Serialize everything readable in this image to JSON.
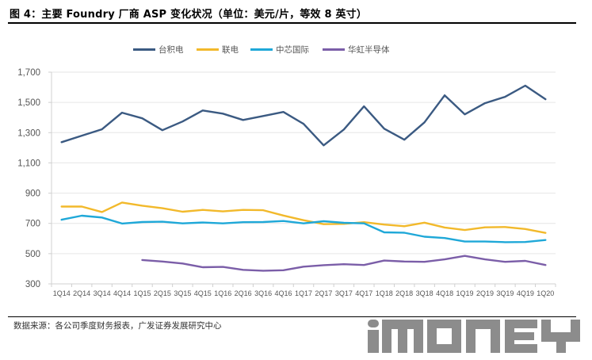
{
  "title": "图 4：主要 Foundry 厂商 ASP 变化状况（单位：美元/片，等效 8 英寸）",
  "source": "数据来源：各公司季度财务报表，广发证券发展研究中心",
  "watermark": "iMONEY",
  "colors": {
    "tsmc": "#3b5a82",
    "umc": "#f2b92b",
    "smic": "#1fa8d8",
    "huahong": "#7b5ea8",
    "grid": "#e6e6e6",
    "axis": "#d0d0d0",
    "watermark": "#8c8c8c"
  },
  "chart_data": {
    "type": "line",
    "title": "主要 Foundry 厂商 ASP 变化状况（单位：美元/片，等效 8 英寸）",
    "xlabel": "",
    "ylabel": "",
    "ylim": [
      300,
      1700
    ],
    "yticks": [
      300,
      500,
      700,
      900,
      1100,
      1300,
      1500,
      1700
    ],
    "ytick_labels": [
      "300",
      "500",
      "700",
      "900",
      "1,100",
      "1,300",
      "1,500",
      "1,700"
    ],
    "grid": true,
    "legend_position": "top-center",
    "categories": [
      "1Q14",
      "2Q14",
      "3Q14",
      "4Q14",
      "1Q15",
      "2Q15",
      "3Q15",
      "4Q15",
      "1Q16",
      "2Q16",
      "3Q16",
      "4Q16",
      "1Q17",
      "2Q17",
      "3Q17",
      "4Q17",
      "1Q18",
      "2Q18",
      "3Q18",
      "4Q18",
      "1Q19",
      "2Q19",
      "3Q19",
      "4Q19",
      "1Q20"
    ],
    "series": [
      {
        "name": "台积电",
        "key": "tsmc",
        "values": [
          1237,
          1280,
          1322,
          1432,
          1395,
          1316,
          1374,
          1447,
          1426,
          1384,
          1410,
          1437,
          1358,
          1216,
          1321,
          1474,
          1326,
          1253,
          1368,
          1547,
          1421,
          1495,
          1537,
          1611,
          1521
        ]
      },
      {
        "name": "联电",
        "key": "umc",
        "values": [
          811,
          811,
          775,
          838,
          817,
          800,
          777,
          789,
          779,
          789,
          787,
          752,
          721,
          695,
          697,
          708,
          692,
          681,
          705,
          673,
          656,
          674,
          676,
          663,
          637
        ]
      },
      {
        "name": "中芯国际",
        "key": "smic",
        "values": [
          724,
          751,
          739,
          699,
          709,
          711,
          700,
          706,
          700,
          708,
          709,
          716,
          700,
          714,
          704,
          700,
          641,
          638,
          612,
          603,
          580,
          580,
          576,
          577,
          590
        ]
      },
      {
        "name": "华虹半导体",
        "key": "huahong",
        "values": [
          null,
          null,
          null,
          null,
          458,
          448,
          435,
          410,
          412,
          393,
          387,
          390,
          414,
          424,
          430,
          425,
          454,
          448,
          446,
          462,
          485,
          462,
          446,
          452,
          425
        ]
      }
    ]
  }
}
